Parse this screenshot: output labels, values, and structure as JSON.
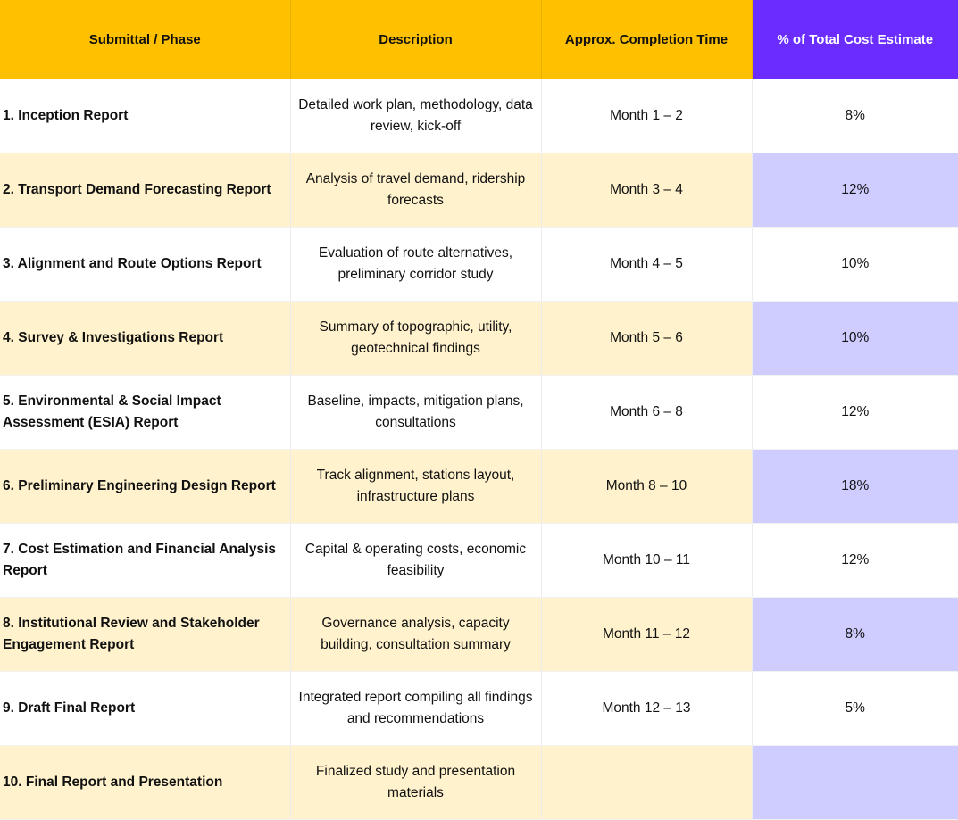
{
  "headers": {
    "phase": "Submittal / Phase",
    "description": "Description",
    "time": "Approx. Completion Time",
    "cost": "% of Total Cost Estimate"
  },
  "rows": [
    {
      "phase": "1. Inception Report",
      "description": "Detailed work plan, methodology, data review, kick-off",
      "time": "Month 1 – 2",
      "cost": "8%"
    },
    {
      "phase": "2. Transport Demand Forecasting Report",
      "description": "Analysis of travel demand, ridership forecasts",
      "time": "Month 3 – 4",
      "cost": "12%"
    },
    {
      "phase": "3. Alignment and Route Options Report",
      "description": "Evaluation of route alternatives, preliminary corridor study",
      "time": "Month 4 – 5",
      "cost": "10%"
    },
    {
      "phase": "4. Survey & Investigations Report",
      "description": "Summary of topographic, utility, geotechnical findings",
      "time": "Month 5 – 6",
      "cost": "10%"
    },
    {
      "phase": "5. Environmental & Social Impact Assessment (ESIA) Report",
      "description": "Baseline, impacts, mitigation plans, consultations",
      "time": "Month 6 – 8",
      "cost": "12%"
    },
    {
      "phase": "6. Preliminary Engineering Design Report",
      "description": "Track alignment, stations layout, infrastructure plans",
      "time": "Month 8 – 10",
      "cost": "18%"
    },
    {
      "phase": "7. Cost Estimation and Financial Analysis Report",
      "description": "Capital & operating costs, economic feasibility",
      "time": "Month 10 – 11",
      "cost": "12%"
    },
    {
      "phase": "8. Institutional Review and Stakeholder Engagement Report",
      "description": "Governance analysis, capacity building, consultation summary",
      "time": "Month 11 – 12",
      "cost": "8%"
    },
    {
      "phase": "9. Draft Final Report",
      "description": "Integrated report compiling all findings and recommendations",
      "time": "Month 12 – 13",
      "cost": "5%"
    },
    {
      "phase": "10. Final Report and Presentation",
      "description": "Finalized study and presentation materials",
      "time": "",
      "cost": ""
    }
  ]
}
